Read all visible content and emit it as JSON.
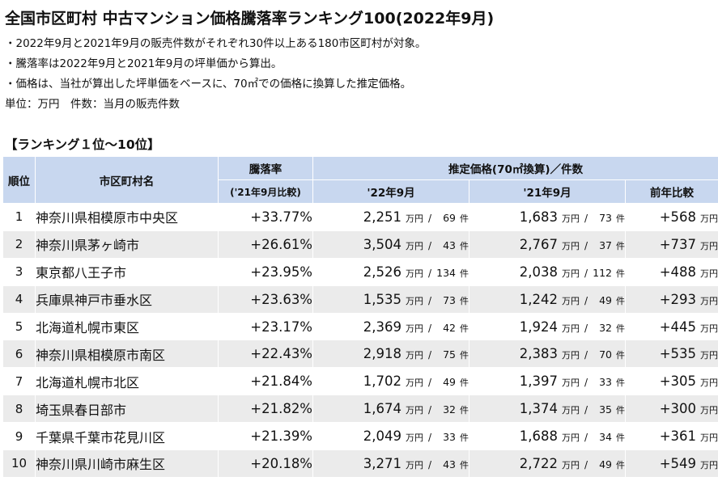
{
  "title": "全国市区町村 中古マンション価格騰落率ランキング100(2022年9月)",
  "notes": [
    "・2022年9月と2021年9月の販売件数がそれぞれ30件以上ある180市区町村が対象。",
    "・騰落率は2022年9月と2021年9月の坪単価から算出。",
    "・価格は、当社が算出した坪単価をベースに、70㎡での価格に換算した推定価格。",
    "単位：万円　件数：当月の販売件数"
  ],
  "subtitle": "【ランキング１位～10位】",
  "headers": {
    "rank": "順位",
    "name": "市区町村名",
    "change": "騰落率",
    "change_sub": "('21年9月比較)",
    "price_group": "推定価格(70㎡換算)／件数",
    "y22": "'22年9月",
    "y21": "'21年9月",
    "diff": "前年比較"
  },
  "units": {
    "man_yen": "万円",
    "slash": "/",
    "ken": "件"
  },
  "rows": [
    {
      "rank": "1",
      "name": "神奈川県相模原市中央区",
      "change": "+33.77%",
      "p22": "2,251",
      "c22": "69",
      "p21": "1,683",
      "c21": "73",
      "diff": "+568"
    },
    {
      "rank": "2",
      "name": "神奈川県茅ヶ崎市",
      "change": "+26.61%",
      "p22": "3,504",
      "c22": "43",
      "p21": "2,767",
      "c21": "37",
      "diff": "+737"
    },
    {
      "rank": "3",
      "name": "東京都八王子市",
      "change": "+23.95%",
      "p22": "2,526",
      "c22": "134",
      "p21": "2,038",
      "c21": "112",
      "diff": "+488"
    },
    {
      "rank": "4",
      "name": "兵庫県神戸市垂水区",
      "change": "+23.63%",
      "p22": "1,535",
      "c22": "73",
      "p21": "1,242",
      "c21": "49",
      "diff": "+293"
    },
    {
      "rank": "5",
      "name": "北海道札幌市東区",
      "change": "+23.17%",
      "p22": "2,369",
      "c22": "42",
      "p21": "1,924",
      "c21": "32",
      "diff": "+445"
    },
    {
      "rank": "6",
      "name": "神奈川県相模原市南区",
      "change": "+22.43%",
      "p22": "2,918",
      "c22": "75",
      "p21": "2,383",
      "c21": "70",
      "diff": "+535"
    },
    {
      "rank": "7",
      "name": "北海道札幌市北区",
      "change": "+21.84%",
      "p22": "1,702",
      "c22": "49",
      "p21": "1,397",
      "c21": "33",
      "diff": "+305"
    },
    {
      "rank": "8",
      "name": "埼玉県春日部市",
      "change": "+21.82%",
      "p22": "1,674",
      "c22": "32",
      "p21": "1,374",
      "c21": "35",
      "diff": "+300"
    },
    {
      "rank": "9",
      "name": "千葉県千葉市花見川区",
      "change": "+21.39%",
      "p22": "2,049",
      "c22": "33",
      "p21": "1,688",
      "c21": "34",
      "diff": "+361"
    },
    {
      "rank": "10",
      "name": "神奈川県川崎市麻生区",
      "change": "+20.18%",
      "p22": "3,271",
      "c22": "43",
      "p21": "2,722",
      "c21": "49",
      "diff": "+549"
    }
  ]
}
